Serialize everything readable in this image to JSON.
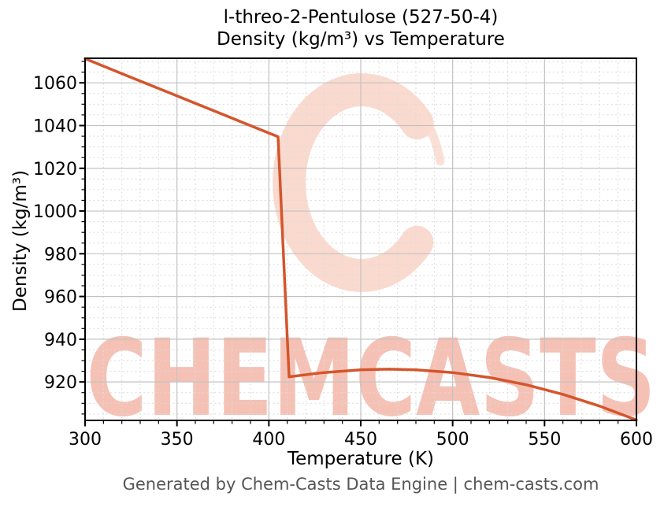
{
  "figure": {
    "title_line1": "l-threo-2-Pentulose (527-50-4)",
    "title_line2": "Density (kg/m³) vs Temperature",
    "footer": "Generated by Chem-Casts Data Engine | chem-casts.com",
    "watermark_text": "CHEMCASTS"
  },
  "colors": {
    "line": "#d4552c",
    "grid_major": "#c2c2c2",
    "grid_minor": "#dadada",
    "spine": "#000000",
    "tick_label": "#000000",
    "footer_text": "#555555",
    "watermark_swirl": "#fadacf",
    "watermark_letters": "rgba(235,118,90,0.45)"
  },
  "chart_data": {
    "type": "line",
    "title": "l-threo-2-Pentulose (527-50-4)\nDensity (kg/m³) vs Temperature",
    "xlabel": "Temperature (K)",
    "ylabel": "Density (kg/m³)",
    "xlim": [
      300,
      600
    ],
    "ylim": [
      902,
      1071.5
    ],
    "x_ticks": [
      300,
      350,
      400,
      450,
      500,
      550,
      600
    ],
    "y_ticks": [
      920,
      940,
      960,
      980,
      1000,
      1020,
      1040,
      1060
    ],
    "x_minor_step": 10,
    "y_minor_step": 5,
    "grid": true,
    "legend_position": "none",
    "series": [
      {
        "name": "Density (kg/m³)",
        "points": [
          [
            300,
            1071.3
          ],
          [
            325,
            1062.6
          ],
          [
            350,
            1053.9
          ],
          [
            375,
            1045.2
          ],
          [
            400,
            1036.5
          ],
          [
            405,
            1034.8
          ],
          [
            411,
            922.4
          ],
          [
            430,
            924.4
          ],
          [
            450,
            925.7
          ],
          [
            465,
            926.0
          ],
          [
            480,
            925.7
          ],
          [
            500,
            924.4
          ],
          [
            520,
            922.1
          ],
          [
            540,
            918.7
          ],
          [
            560,
            914.2
          ],
          [
            580,
            908.7
          ],
          [
            600,
            902.2
          ]
        ]
      }
    ]
  }
}
